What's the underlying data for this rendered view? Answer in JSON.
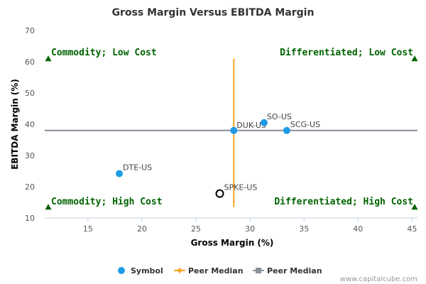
{
  "chart_data": {
    "type": "scatter",
    "title": "Gross Margin Versus EBITDA Margin",
    "xlabel": "Gross Margin (%)",
    "ylabel": "EBITDA Margin (%)",
    "xlim": [
      11,
      45.5
    ],
    "ylim": [
      10,
      70
    ],
    "xticks": [
      15,
      20,
      25,
      30,
      35,
      40,
      45
    ],
    "yticks": [
      10,
      20,
      30,
      40,
      50,
      60,
      70
    ],
    "grid": false,
    "points": [
      {
        "label": "DUK-US",
        "x": 28.5,
        "y": 38,
        "style": "filled"
      },
      {
        "label": "SO-US",
        "x": 31.3,
        "y": 40.5,
        "style": "filled"
      },
      {
        "label": "SCG-US",
        "x": 33.4,
        "y": 38,
        "style": "filled"
      },
      {
        "label": "DTE-US",
        "x": 17.9,
        "y": 24.2,
        "style": "filled"
      },
      {
        "label": "SPKE-US",
        "x": 27.2,
        "y": 17.8,
        "style": "hollow"
      }
    ],
    "peer_median": {
      "x": 28.5,
      "y": 38,
      "v_range": [
        13.5,
        61
      ],
      "h_range": [
        11,
        45.5
      ]
    },
    "quadrants": [
      {
        "label": "Commodity; Low Cost",
        "pos": "top-left"
      },
      {
        "label": "Differentiated; Low Cost",
        "pos": "top-right"
      },
      {
        "label": "Commodity; High Cost",
        "pos": "bottom-left"
      },
      {
        "label": "Differentiated; High Cost",
        "pos": "bottom-right"
      }
    ],
    "legend": {
      "placement": "bottom",
      "entries": [
        {
          "name": "Symbol",
          "marker": "circle",
          "color": "#1f9be6"
        },
        {
          "name": "Peer Median",
          "marker": "diamond-line",
          "color": "#f5a623"
        },
        {
          "name": "Peer Median",
          "marker": "square-line",
          "color": "#8a8f9c"
        }
      ]
    },
    "colors": {
      "point": "#1f9be6",
      "hollow_stroke": "#000000",
      "vline": "#f5a623",
      "hline": "#8a8f9c",
      "quadrant_text": "#006400",
      "triangle": "#006400",
      "axis": "#c0d0e0"
    }
  },
  "credit": "www.capitalcube.com"
}
